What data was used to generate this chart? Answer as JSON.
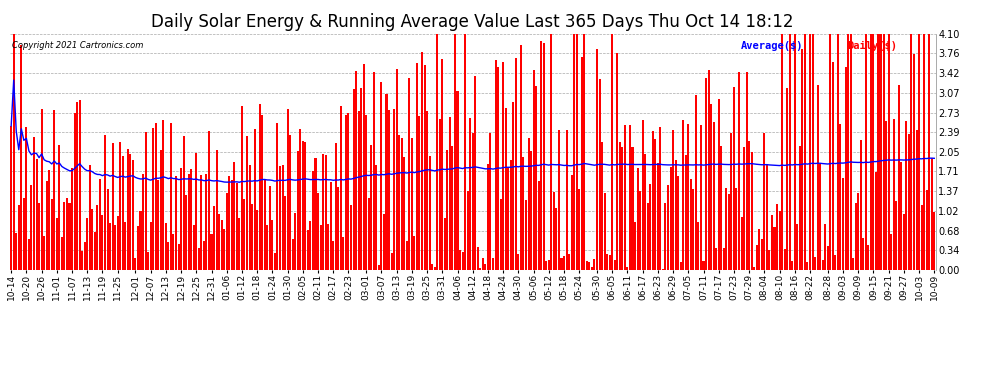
{
  "title": "Daily Solar Energy & Running Average Value Last 365 Days Thu Oct 14 18:12",
  "copyright": "Copyright 2021 Cartronics.com",
  "legend_average": "Average($)",
  "legend_daily": "Daily($)",
  "bar_color": "#ff0000",
  "average_color": "#0000ff",
  "background_color": "#ffffff",
  "plot_bg_color": "#ffffff",
  "grid_color": "#aaaaaa",
  "ylim": [
    0.0,
    4.1
  ],
  "yticks": [
    0.0,
    0.34,
    0.68,
    1.02,
    1.37,
    1.71,
    2.05,
    2.39,
    2.73,
    3.07,
    3.42,
    3.76,
    4.1
  ],
  "title_fontsize": 12,
  "tick_fontsize": 7,
  "x_labels": [
    "10-14",
    "10-20",
    "10-26",
    "11-01",
    "11-07",
    "11-13",
    "11-19",
    "11-25",
    "12-01",
    "12-07",
    "12-13",
    "12-19",
    "12-25",
    "12-31",
    "01-06",
    "01-12",
    "01-18",
    "01-24",
    "01-30",
    "02-05",
    "02-11",
    "02-17",
    "02-23",
    "03-01",
    "03-07",
    "03-13",
    "03-19",
    "03-25",
    "03-31",
    "04-06",
    "04-12",
    "04-18",
    "04-24",
    "04-30",
    "05-06",
    "05-12",
    "05-18",
    "05-24",
    "05-30",
    "06-05",
    "06-11",
    "06-17",
    "06-23",
    "06-29",
    "07-05",
    "07-11",
    "07-17",
    "07-23",
    "07-29",
    "08-04",
    "08-10",
    "08-16",
    "08-22",
    "08-28",
    "09-03",
    "09-09",
    "09-15",
    "09-21",
    "09-27",
    "10-03",
    "10-09"
  ],
  "n_bars": 365,
  "running_avg": [
    1.86,
    1.85,
    1.84,
    1.84,
    1.84,
    1.83,
    1.83,
    1.83,
    1.83,
    1.82,
    1.82,
    1.82,
    1.81,
    1.81,
    1.81,
    1.8,
    1.8,
    1.8,
    1.79,
    1.79,
    1.79,
    1.78,
    1.78,
    1.78,
    1.77,
    1.77,
    1.76,
    1.76,
    1.75,
    1.75,
    1.74,
    1.74,
    1.73,
    1.73,
    1.72,
    1.72,
    1.71,
    1.71,
    1.7,
    1.7,
    1.69,
    1.69,
    1.68,
    1.68,
    1.67,
    1.67,
    1.66,
    1.66,
    1.65,
    1.65,
    1.64,
    1.64,
    1.63,
    1.63,
    1.62,
    1.62,
    1.61,
    1.61,
    1.6,
    1.6,
    1.59,
    1.59,
    1.59,
    1.58,
    1.58,
    1.58,
    1.57,
    1.57,
    1.57,
    1.56,
    1.56,
    1.56,
    1.55,
    1.55,
    1.55,
    1.55,
    1.54,
    1.54,
    1.54,
    1.54,
    1.54,
    1.53,
    1.53,
    1.53,
    1.53,
    1.53,
    1.53,
    1.53,
    1.53,
    1.53,
    1.53,
    1.53,
    1.53,
    1.53,
    1.53,
    1.53,
    1.53,
    1.53,
    1.53,
    1.53,
    1.53,
    1.53,
    1.53,
    1.54,
    1.54,
    1.54,
    1.54,
    1.54,
    1.54,
    1.55,
    1.55,
    1.55,
    1.55,
    1.55,
    1.56,
    1.56,
    1.56,
    1.56,
    1.57,
    1.57,
    1.57,
    1.57,
    1.58,
    1.58,
    1.58,
    1.58,
    1.59,
    1.59,
    1.59,
    1.6,
    1.6,
    1.6,
    1.61,
    1.61,
    1.61,
    1.62,
    1.62,
    1.62,
    1.63,
    1.63,
    1.63,
    1.64,
    1.64,
    1.65,
    1.65,
    1.65,
    1.66,
    1.66,
    1.67,
    1.67,
    1.67,
    1.68,
    1.68,
    1.69,
    1.69,
    1.69,
    1.7,
    1.7,
    1.71,
    1.71,
    1.71,
    1.72,
    1.72,
    1.73,
    1.73,
    1.73,
    1.74,
    1.74,
    1.74,
    1.75,
    1.75,
    1.75,
    1.76,
    1.76,
    1.76,
    1.77,
    1.77,
    1.77,
    1.77,
    1.78,
    1.78,
    1.78,
    1.78,
    1.79,
    1.79,
    1.79,
    1.79,
    1.79,
    1.8,
    1.8,
    1.8,
    1.8,
    1.8,
    1.81,
    1.81,
    1.81,
    1.81,
    1.81,
    1.81,
    1.82,
    1.82,
    1.82,
    1.82,
    1.82,
    1.82,
    1.82,
    1.82,
    1.83,
    1.83,
    1.83,
    1.83,
    1.83,
    1.83,
    1.83,
    1.83,
    1.83,
    1.83,
    1.83,
    1.83,
    1.84,
    1.84,
    1.84,
    1.84,
    1.84,
    1.84,
    1.84,
    1.84,
    1.84,
    1.84,
    1.84,
    1.84,
    1.84,
    1.84,
    1.84,
    1.84,
    1.84,
    1.84,
    1.84,
    1.84,
    1.84,
    1.84,
    1.84,
    1.84,
    1.84,
    1.84,
    1.84,
    1.84,
    1.84,
    1.84,
    1.84,
    1.84,
    1.84,
    1.84,
    1.83,
    1.83,
    1.83,
    1.83,
    1.83,
    1.83,
    1.83,
    1.83,
    1.83,
    1.83,
    1.83,
    1.83,
    1.83,
    1.83,
    1.83,
    1.83,
    1.83,
    1.83,
    1.83,
    1.83,
    1.83,
    1.83,
    1.83,
    1.83,
    1.83,
    1.83,
    1.83,
    1.83,
    1.83,
    1.83,
    1.83,
    1.83,
    1.83,
    1.83,
    1.83,
    1.83,
    1.83,
    1.83,
    1.83,
    1.83,
    1.83,
    1.83,
    1.83,
    1.83,
    1.83,
    1.83,
    1.83,
    1.83,
    1.83,
    1.84,
    1.84,
    1.84,
    1.84,
    1.84,
    1.85,
    1.85,
    1.85,
    1.85,
    1.85,
    1.86,
    1.86,
    1.86,
    1.87,
    1.87,
    1.87,
    1.87,
    1.87,
    1.87,
    1.87,
    1.87,
    1.87,
    1.88,
    1.88,
    1.88,
    1.88,
    1.88,
    1.88,
    1.89,
    1.89,
    1.89,
    1.89,
    1.9,
    1.9,
    1.9,
    1.9,
    1.9,
    1.9,
    1.91,
    1.91,
    1.91,
    1.92,
    1.92,
    1.92,
    1.93,
    1.93,
    1.94,
    1.94,
    1.94,
    1.95,
    1.95,
    1.95,
    1.96,
    1.96,
    1.97,
    1.97,
    1.97,
    1.98,
    1.98,
    1.98,
    1.99,
    1.99,
    2.0
  ]
}
